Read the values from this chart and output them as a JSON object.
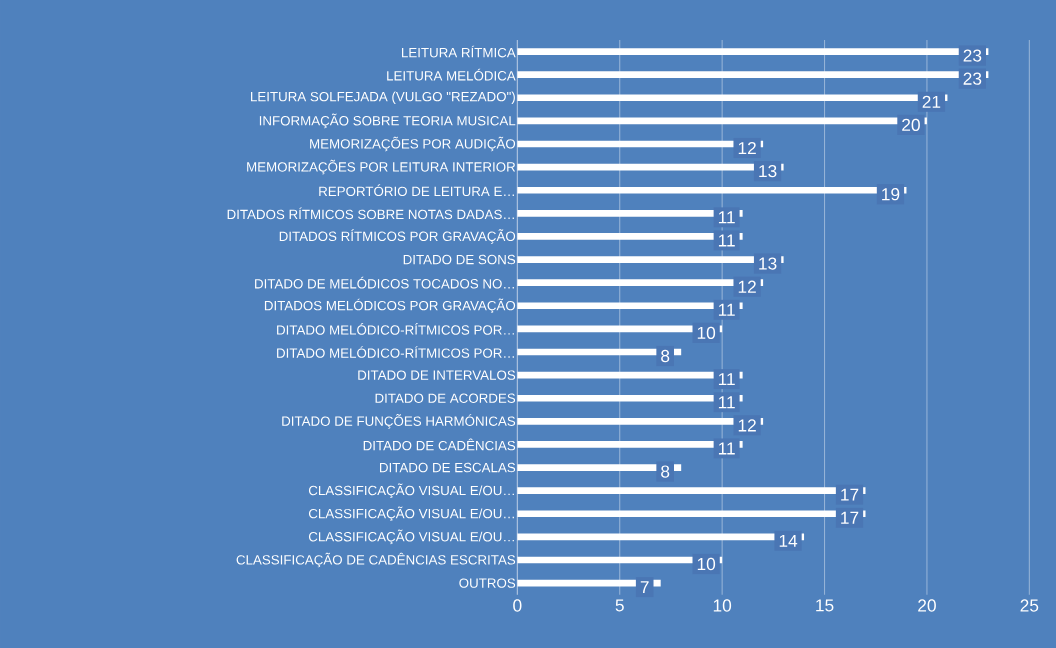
{
  "chart_data": {
    "type": "bar",
    "orientation": "horizontal",
    "categories": [
      "LEITURA RÍTMICA",
      "LEITURA MELÓDICA",
      "LEITURA SOLFEJADA (VULGO \"REZADO\")",
      "INFORMAÇÃO SOBRE TEORIA MUSICAL",
      "MEMORIZAÇÕES POR AUDIÇÃO",
      "MEMORIZAÇÕES POR LEITURA INTERIOR",
      "REPORTÓRIO DE LEITURA E…",
      "DITADOS RÍTMICOS SOBRE NOTAS DADAS…",
      "DITADOS RÍTMICOS POR GRAVAÇÃO",
      "DITADO DE SONS",
      "DITADO DE MELÓDICOS TOCADOS NO…",
      "DITADOS MELÓDICOS POR GRAVAÇÃO",
      "DITADO MELÓDICO-RÍTMICOS POR…",
      "DITADO MELÓDICO-RÍTMICOS POR…",
      "DITADO DE INTERVALOS",
      "DITADO DE ACORDES",
      "DITADO DE FUNÇÕES HARMÓNICAS",
      "DITADO DE CADÊNCIAS",
      "DITADO DE ESCALAS",
      "CLASSIFICAÇÃO VISUAL E/OU…",
      "CLASSIFICAÇÃO VISUAL E/OU…",
      "CLASSIFICAÇÃO VISUAL E/OU…",
      "CLASSIFICAÇÃO DE CADÊNCIAS ESCRITAS",
      "OUTROS"
    ],
    "values": [
      23,
      23,
      21,
      20,
      12,
      13,
      19,
      11,
      11,
      13,
      12,
      11,
      10,
      8,
      11,
      11,
      12,
      11,
      8,
      17,
      17,
      14,
      10,
      7
    ],
    "color": "#ffffff",
    "xlim": [
      0,
      25
    ],
    "xticks": [
      0,
      5,
      10,
      15,
      20,
      25
    ],
    "grid": "x",
    "data_labels": true
  }
}
